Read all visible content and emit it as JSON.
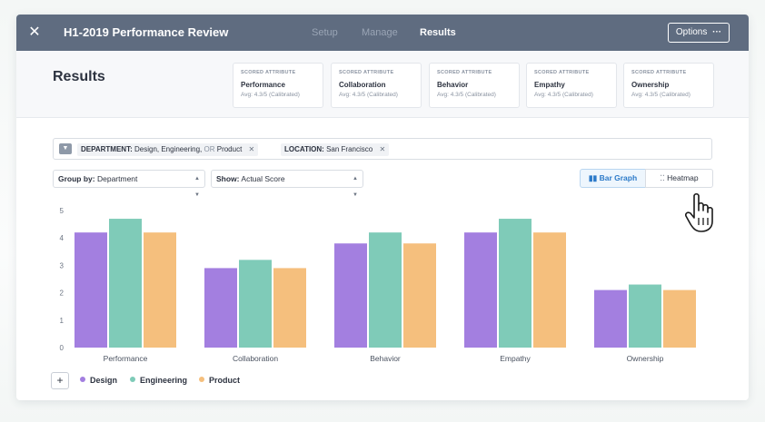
{
  "topbar": {
    "close_icon": "close-icon",
    "title": "H1-2019 Performance Review",
    "tabs": [
      {
        "label": "Setup",
        "active": false
      },
      {
        "label": "Manage",
        "active": false
      },
      {
        "label": "Results",
        "active": true
      }
    ],
    "options_label": "Options",
    "options_icon": "more-dots-icon"
  },
  "header": {
    "title": "Results",
    "attributes": [
      {
        "kicker": "SCORED ATTRIBUTE",
        "name": "Performance",
        "avg": "Avg: 4.3/5 (Calibrated)"
      },
      {
        "kicker": "SCORED ATTRIBUTE",
        "name": "Collaboration",
        "avg": "Avg: 4.3/5 (Calibrated)"
      },
      {
        "kicker": "SCORED ATTRIBUTE",
        "name": "Behavior",
        "avg": "Avg: 4.3/5 (Calibrated)"
      },
      {
        "kicker": "SCORED ATTRIBUTE",
        "name": "Empathy",
        "avg": "Avg: 4.3/5 (Calibrated)"
      },
      {
        "kicker": "SCORED ATTRIBUTE",
        "name": "Ownership",
        "avg": "Avg: 4.3/5 (Calibrated)"
      }
    ]
  },
  "filters": {
    "icon": "filter-icon",
    "department": {
      "key": "DEPARTMENT:",
      "value_a": "Design, Engineering,",
      "or": "OR",
      "value_b": "Product"
    },
    "location": {
      "key": "LOCATION:",
      "value": "San Francisco"
    },
    "remove_glyph": "✕"
  },
  "controls": {
    "group_by": {
      "key": "Group by:",
      "value": "Department"
    },
    "show": {
      "key": "Show:",
      "value": "Actual Score"
    },
    "views": [
      {
        "label": "Bar Graph",
        "icon": "bar-chart-icon",
        "active": true
      },
      {
        "label": "Heatmap",
        "icon": "grid-icon",
        "active": false
      }
    ]
  },
  "chart_data": {
    "type": "bar",
    "categories": [
      "Performance",
      "Collaboration",
      "Behavior",
      "Empathy",
      "Ownership"
    ],
    "series": [
      {
        "name": "Design",
        "color": "#a37fe0",
        "values": [
          4.2,
          2.9,
          3.8,
          4.2,
          2.1
        ]
      },
      {
        "name": "Engineering",
        "color": "#7fcbb8",
        "values": [
          4.7,
          3.2,
          4.2,
          4.7,
          2.3
        ]
      },
      {
        "name": "Product",
        "color": "#f5bf7d",
        "values": [
          4.2,
          2.9,
          3.8,
          4.2,
          2.1
        ]
      }
    ],
    "ylim": [
      0,
      5
    ],
    "yticks": [
      "0",
      "1",
      "2",
      "3",
      "4",
      "5"
    ],
    "grid": false,
    "legend": "bottom-left"
  },
  "legend": {
    "add_label": "+"
  }
}
